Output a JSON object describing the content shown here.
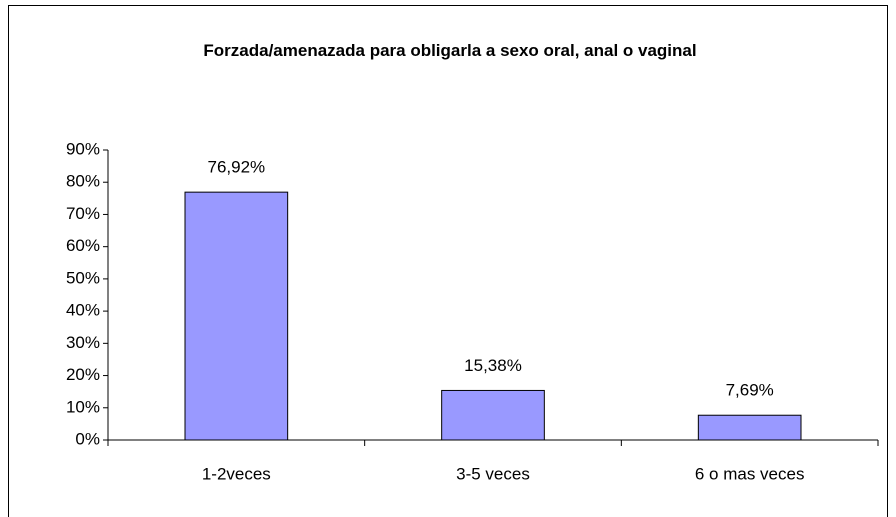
{
  "chart_data": {
    "type": "bar",
    "title": "Forzada/amenazada para obligarla a sexo oral, anal o vaginal",
    "categories": [
      "1-2veces",
      "3-5 veces",
      "6 o mas veces"
    ],
    "values": [
      76.92,
      15.38,
      7.69
    ],
    "value_labels": [
      "76,92%",
      "15,38%",
      "7,69%"
    ],
    "color": "#9999ff",
    "ylim": [
      0,
      90
    ],
    "yticks": [
      {
        "value": 0,
        "label": "0%"
      },
      {
        "value": 10,
        "label": "10%"
      },
      {
        "value": 20,
        "label": "20%"
      },
      {
        "value": 30,
        "label": "30%"
      },
      {
        "value": 40,
        "label": "40%"
      },
      {
        "value": 50,
        "label": "50%"
      },
      {
        "value": 60,
        "label": "60%"
      },
      {
        "value": 70,
        "label": "70%"
      },
      {
        "value": 80,
        "label": "80%"
      },
      {
        "value": 90,
        "label": "90%"
      }
    ],
    "grid": false
  }
}
